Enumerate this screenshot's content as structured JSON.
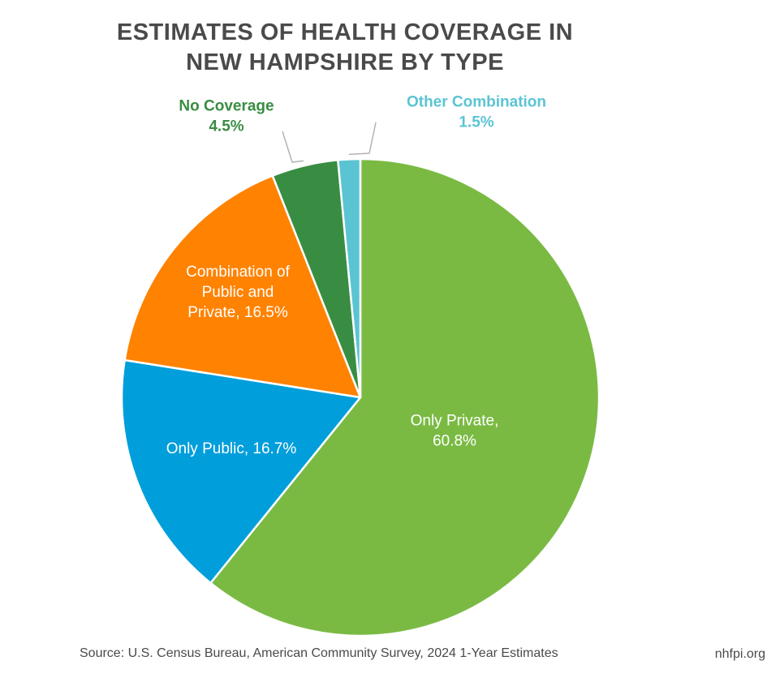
{
  "chart_data": {
    "type": "pie",
    "title_lines": [
      "ESTIMATES OF HEALTH COVERAGE IN",
      "NEW HAMPSHIRE BY TYPE"
    ],
    "start": "12 o'clock, clockwise",
    "slices": [
      {
        "key": "only-private",
        "lines": [
          "Only Private,",
          "60.8%"
        ],
        "value": 60.8,
        "color": "#7aba43",
        "label_color": "#ffffff",
        "label_position": "inside"
      },
      {
        "key": "only-public",
        "lines": [
          "Only Public, 16.7%"
        ],
        "value": 16.7,
        "color": "#009edb",
        "label_color": "#ffffff",
        "label_position": "inside"
      },
      {
        "key": "combination-public-private",
        "lines": [
          "Combination of",
          "Public and",
          "Private, 16.5%"
        ],
        "value": 16.5,
        "color": "#ff8200",
        "label_color": "#ffffff",
        "label_position": "inside"
      },
      {
        "key": "no-coverage",
        "lines": [
          "No Coverage",
          "4.5%"
        ],
        "value": 4.5,
        "color": "#398d42",
        "label_color": "#398d42",
        "label_position": "outside-top"
      },
      {
        "key": "other-combination",
        "lines": [
          "Other Combination",
          "1.5%"
        ],
        "value": 1.5,
        "color": "#5bc4d3",
        "label_color": "#5bc4d3",
        "label_position": "outside-top"
      }
    ],
    "leader_line_color": "#b3b3b3"
  },
  "footer": {
    "source": "Source: U.S. Census Bureau, American Community Survey, 2024 1-Year Estimates",
    "credit": "nhfpi.org"
  }
}
